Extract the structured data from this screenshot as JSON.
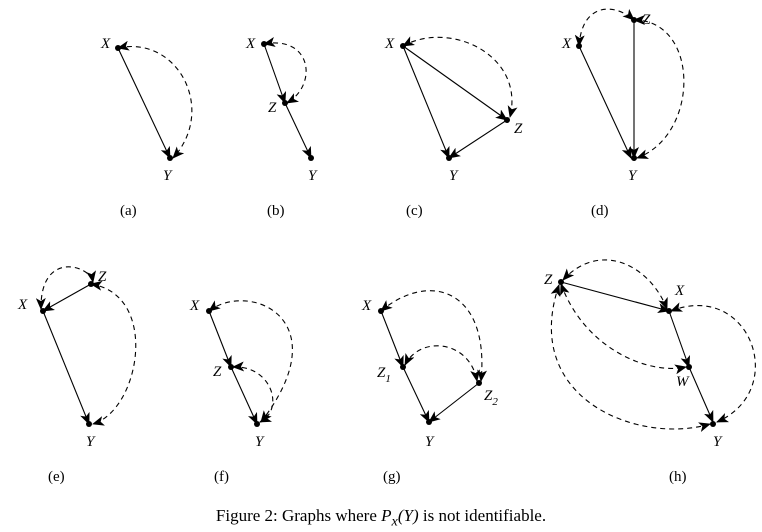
{
  "caption": {
    "prefix": "Figure 2: Graphs where",
    "math_P": "P",
    "math_sub": "x",
    "math_arg": "(Y)",
    "suffix": "is not identifiable."
  },
  "panels": [
    {
      "label": "(a)",
      "nodes": [
        {
          "id": "X",
          "text": "X"
        },
        {
          "id": "Y",
          "text": "Y"
        }
      ],
      "directed": [
        [
          "X",
          "Y"
        ]
      ],
      "bidirected": [
        [
          "X",
          "Y"
        ]
      ]
    },
    {
      "label": "(b)",
      "nodes": [
        {
          "id": "X",
          "text": "X"
        },
        {
          "id": "Z",
          "text": "Z"
        },
        {
          "id": "Y",
          "text": "Y"
        }
      ],
      "directed": [
        [
          "X",
          "Z"
        ],
        [
          "Z",
          "Y"
        ]
      ],
      "bidirected": [
        [
          "X",
          "Z"
        ]
      ]
    },
    {
      "label": "(c)",
      "nodes": [
        {
          "id": "X",
          "text": "X"
        },
        {
          "id": "Z",
          "text": "Z"
        },
        {
          "id": "Y",
          "text": "Y"
        }
      ],
      "directed": [
        [
          "X",
          "Z"
        ],
        [
          "X",
          "Y"
        ],
        [
          "Z",
          "Y"
        ]
      ],
      "bidirected": [
        [
          "X",
          "Z"
        ]
      ]
    },
    {
      "label": "(d)",
      "nodes": [
        {
          "id": "X",
          "text": "X"
        },
        {
          "id": "Z",
          "text": "Z"
        },
        {
          "id": "Y",
          "text": "Y"
        }
      ],
      "directed": [
        [
          "X",
          "Y"
        ],
        [
          "Z",
          "Y"
        ]
      ],
      "bidirected": [
        [
          "X",
          "Z"
        ],
        [
          "Z",
          "Y"
        ]
      ]
    },
    {
      "label": "(e)",
      "nodes": [
        {
          "id": "X",
          "text": "X"
        },
        {
          "id": "Z",
          "text": "Z"
        },
        {
          "id": "Y",
          "text": "Y"
        }
      ],
      "directed": [
        [
          "Z",
          "X"
        ],
        [
          "X",
          "Y"
        ]
      ],
      "bidirected": [
        [
          "X",
          "Z"
        ],
        [
          "Z",
          "Y"
        ]
      ]
    },
    {
      "label": "(f)",
      "nodes": [
        {
          "id": "X",
          "text": "X"
        },
        {
          "id": "Z",
          "text": "Z"
        },
        {
          "id": "Y",
          "text": "Y"
        }
      ],
      "directed": [
        [
          "X",
          "Z"
        ],
        [
          "Z",
          "Y"
        ]
      ],
      "bidirected": [
        [
          "X",
          "Y"
        ],
        [
          "Z",
          "Y"
        ]
      ]
    },
    {
      "label": "(g)",
      "nodes": [
        {
          "id": "X",
          "text": "X"
        },
        {
          "id": "Z1",
          "text": "Z",
          "sub": "1"
        },
        {
          "id": "Z2",
          "text": "Z",
          "sub": "2"
        },
        {
          "id": "Y",
          "text": "Y"
        }
      ],
      "directed": [
        [
          "X",
          "Z1"
        ],
        [
          "Z1",
          "Y"
        ],
        [
          "Z2",
          "Y"
        ]
      ],
      "bidirected": [
        [
          "X",
          "Z2"
        ],
        [
          "Z1",
          "Z2"
        ]
      ]
    },
    {
      "label": "(h)",
      "nodes": [
        {
          "id": "Z",
          "text": "Z"
        },
        {
          "id": "X",
          "text": "X"
        },
        {
          "id": "W",
          "text": "W"
        },
        {
          "id": "Y",
          "text": "Y"
        }
      ],
      "directed": [
        [
          "Z",
          "X"
        ],
        [
          "X",
          "W"
        ],
        [
          "W",
          "Y"
        ]
      ],
      "bidirected": [
        [
          "Z",
          "X"
        ],
        [
          "Z",
          "W"
        ],
        [
          "Z",
          "Y"
        ],
        [
          "X",
          "Y"
        ]
      ]
    }
  ]
}
